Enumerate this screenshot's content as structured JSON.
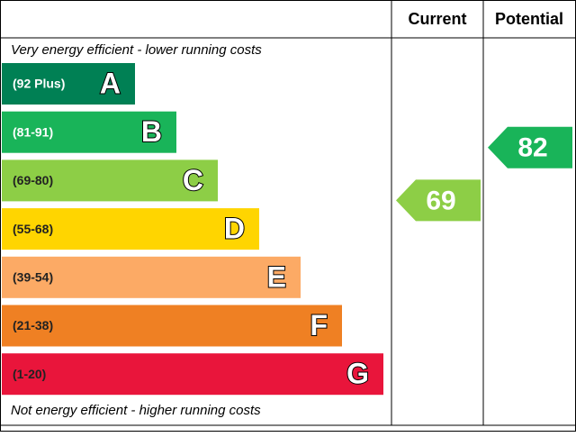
{
  "chart_data": {
    "type": "epc",
    "headers": [
      "Current",
      "Potential"
    ],
    "top_note": "Very energy efficient - lower running costs",
    "bottom_note": "Not energy efficient - higher running costs",
    "bands": [
      {
        "range": "(92 Plus)",
        "letter": "A",
        "color": "#008054",
        "text_color": "#ffffff"
      },
      {
        "range": "(81-91)",
        "letter": "B",
        "color": "#19b459",
        "text_color": "#ffffff"
      },
      {
        "range": "(69-80)",
        "letter": "C",
        "color": "#8dce46",
        "text_color": "#222222"
      },
      {
        "range": "(55-68)",
        "letter": "D",
        "color": "#ffd500",
        "text_color": "#222222"
      },
      {
        "range": "(39-54)",
        "letter": "E",
        "color": "#fcaa65",
        "text_color": "#222222"
      },
      {
        "range": "(21-38)",
        "letter": "F",
        "color": "#ef8023",
        "text_color": "#222222"
      },
      {
        "range": "(1-20)",
        "letter": "G",
        "color": "#e9153b",
        "text_color": "#222222"
      }
    ],
    "ratings": [
      {
        "value": 69,
        "color": "#8dce46"
      },
      {
        "value": 82,
        "color": "#19b459"
      }
    ]
  }
}
